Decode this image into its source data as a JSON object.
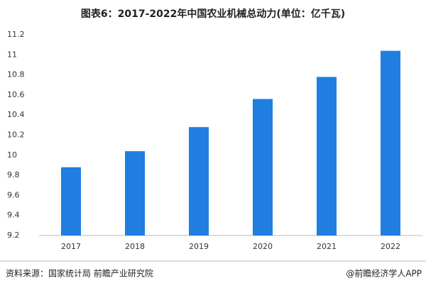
{
  "chart_data": {
    "type": "bar",
    "title": "图表6：2017-2022年中国农业机械总动力(单位：亿千瓦)",
    "categories": [
      "2017",
      "2018",
      "2019",
      "2020",
      "2021",
      "2022"
    ],
    "values": [
      9.88,
      10.04,
      10.28,
      10.56,
      10.78,
      11.04
    ],
    "color": "#1f7ee0",
    "ylim": [
      9.2,
      11.2
    ],
    "yticks": [
      9.2,
      9.4,
      9.6,
      9.8,
      10,
      10.2,
      10.4,
      10.6,
      10.8,
      11,
      11.2
    ],
    "grid": false
  },
  "footer": {
    "source": "资料来源：国家统计局 前瞻产业研究院",
    "credit": "@前瞻经济学人APP"
  }
}
